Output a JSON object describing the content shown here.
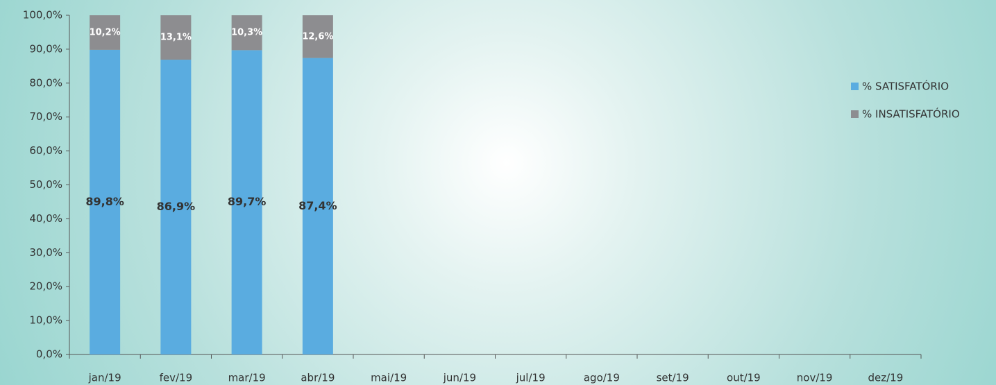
{
  "chart_data": {
    "type": "stacked_bar",
    "categories": [
      "jan/19",
      "fev/19",
      "mar/19",
      "abr/19",
      "mai/19",
      "jun/19",
      "jul/19",
      "ago/19",
      "set/19",
      "out/19",
      "nov/19",
      "dez/19"
    ],
    "series": [
      {
        "name": "% SATISFATÓRIO",
        "color": "#5aace0",
        "label_color": "#333333",
        "values": [
          89.8,
          86.9,
          89.7,
          87.4,
          null,
          null,
          null,
          null,
          null,
          null,
          null,
          null
        ],
        "value_labels": [
          "89,8%",
          "86,9%",
          "89,7%",
          "87,4%",
          null,
          null,
          null,
          null,
          null,
          null,
          null,
          null
        ]
      },
      {
        "name": "% INSATISFATÓRIO",
        "color": "#8d8d90",
        "label_color": "#ffffff",
        "values": [
          10.2,
          13.1,
          10.3,
          12.6,
          null,
          null,
          null,
          null,
          null,
          null,
          null,
          null
        ],
        "value_labels": [
          "10,2%",
          "13,1%",
          "10,3%",
          "12,6%",
          null,
          null,
          null,
          null,
          null,
          null,
          null,
          null
        ]
      }
    ],
    "ylim": [
      0,
      100
    ],
    "yticks": [
      {
        "value": 0,
        "label": "0,0%"
      },
      {
        "value": 10,
        "label": "10,0%"
      },
      {
        "value": 20,
        "label": "20,0%"
      },
      {
        "value": 30,
        "label": "30,0%"
      },
      {
        "value": 40,
        "label": "40,0%"
      },
      {
        "value": 50,
        "label": "50,0%"
      },
      {
        "value": 60,
        "label": "60,0%"
      },
      {
        "value": 70,
        "label": "70,0%"
      },
      {
        "value": 80,
        "label": "80,0%"
      },
      {
        "value": 90,
        "label": "90,0%"
      },
      {
        "value": 100,
        "label": "100,0%"
      }
    ],
    "grid": false,
    "legend": "right"
  }
}
